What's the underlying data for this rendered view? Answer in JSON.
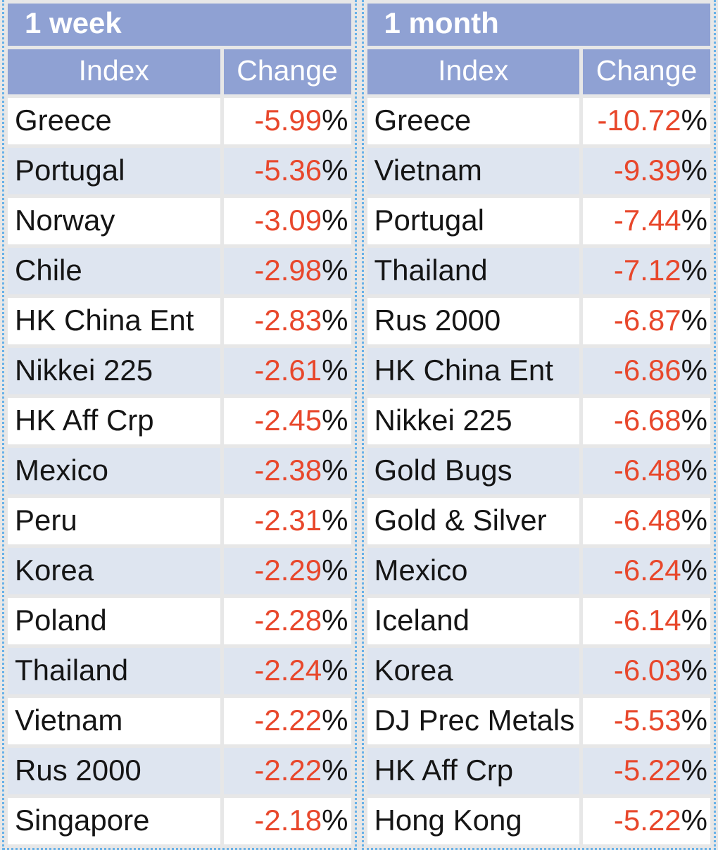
{
  "colors": {
    "page_bg": "#E7E7E7",
    "header_bg": "#8FA1D3",
    "row_even_bg": "#FFFFFF",
    "row_odd_bg": "#DEE5F0",
    "header_text": "#FFFFFF",
    "index_text": "#151515",
    "negative_value": "#E8472B",
    "percent_sign": "#151515",
    "dotted_border": "#67B1E8"
  },
  "chart_data": [
    {
      "type": "table",
      "title": "1 week",
      "columns": [
        "Index",
        "Change"
      ],
      "value_suffix": "%",
      "rows": [
        {
          "index": "Greece",
          "change": "-5.99"
        },
        {
          "index": "Portugal",
          "change": "-5.36"
        },
        {
          "index": "Norway",
          "change": "-3.09"
        },
        {
          "index": "Chile",
          "change": "-2.98"
        },
        {
          "index": "HK China Ent",
          "change": "-2.83"
        },
        {
          "index": "Nikkei 225",
          "change": "-2.61"
        },
        {
          "index": "HK Aff Crp",
          "change": "-2.45"
        },
        {
          "index": "Mexico",
          "change": "-2.38"
        },
        {
          "index": "Peru",
          "change": "-2.31"
        },
        {
          "index": "Korea",
          "change": "-2.29"
        },
        {
          "index": "Poland",
          "change": "-2.28"
        },
        {
          "index": "Thailand",
          "change": "-2.24"
        },
        {
          "index": "Vietnam",
          "change": "-2.22"
        },
        {
          "index": "Rus 2000",
          "change": "-2.22"
        },
        {
          "index": "Singapore",
          "change": "-2.18"
        }
      ]
    },
    {
      "type": "table",
      "title": "1 month",
      "columns": [
        "Index",
        "Change"
      ],
      "value_suffix": "%",
      "rows": [
        {
          "index": "Greece",
          "change": "-10.72"
        },
        {
          "index": "Vietnam",
          "change": "-9.39"
        },
        {
          "index": "Portugal",
          "change": "-7.44"
        },
        {
          "index": "Thailand",
          "change": "-7.12"
        },
        {
          "index": "Rus 2000",
          "change": "-6.87"
        },
        {
          "index": "HK China Ent",
          "change": "-6.86"
        },
        {
          "index": "Nikkei 225",
          "change": "-6.68"
        },
        {
          "index": "Gold Bugs",
          "change": "-6.48"
        },
        {
          "index": "Gold & Silver",
          "change": "-6.48"
        },
        {
          "index": "Mexico",
          "change": "-6.24"
        },
        {
          "index": "Iceland",
          "change": "-6.14"
        },
        {
          "index": "Korea",
          "change": "-6.03"
        },
        {
          "index": "DJ Prec Metals",
          "change": "-5.53"
        },
        {
          "index": "HK Aff Crp",
          "change": "-5.22"
        },
        {
          "index": "Hong Kong",
          "change": "-5.22"
        }
      ]
    }
  ]
}
